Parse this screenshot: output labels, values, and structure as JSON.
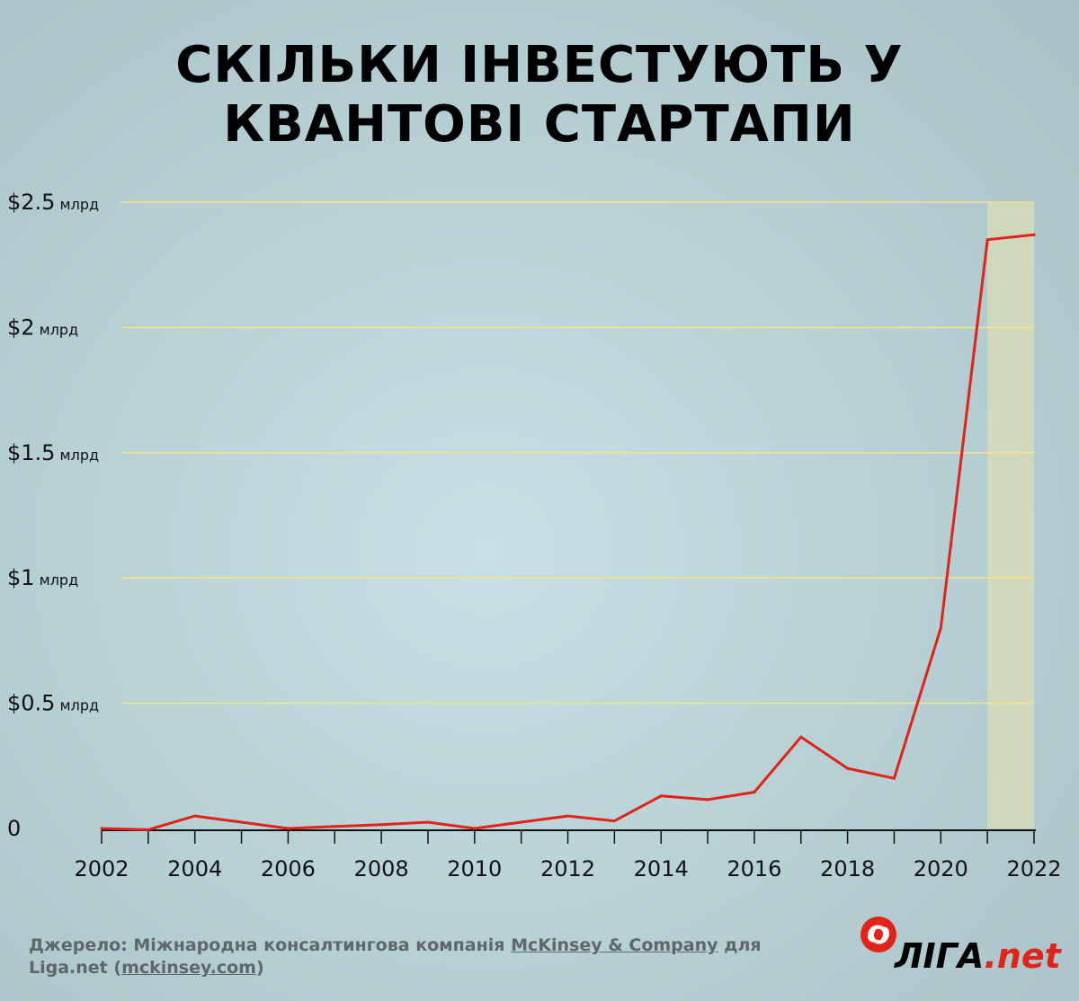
{
  "title": {
    "line1": "СКІЛЬКИ ІНВЕСТУЮТЬ У",
    "line2": "КВАНТОВІ СТАРТАПИ"
  },
  "chart_data": {
    "type": "line",
    "title": "СКІЛЬКИ ІНВЕСТУЮТЬ У КВАНТОВІ СТАРТАПИ",
    "xlabel": "",
    "ylabel": "",
    "x": [
      2002,
      2003,
      2004,
      2005,
      2006,
      2007,
      2008,
      2009,
      2010,
      2011,
      2012,
      2013,
      2014,
      2015,
      2016,
      2017,
      2018,
      2019,
      2020,
      2021,
      2022
    ],
    "series": [
      {
        "name": "",
        "values": [
          0.0,
          -0.005,
          0.05,
          0.025,
          0.0,
          0.008,
          0.015,
          0.025,
          0.0,
          0.025,
          0.05,
          0.03,
          0.13,
          0.115,
          0.145,
          0.365,
          0.24,
          0.2,
          0.8,
          2.35,
          2.37
        ]
      }
    ],
    "xlim": [
      2002,
      2022
    ],
    "ylim": [
      0,
      2.5
    ],
    "x_ticks": [
      "2002",
      "2004",
      "2006",
      "2008",
      "2010",
      "2012",
      "2014",
      "2016",
      "2018",
      "2020",
      "2022"
    ],
    "y_ticks": [
      {
        "value": 0,
        "main": "0",
        "unit": ""
      },
      {
        "value": 0.5,
        "main": "$0.5",
        "unit": "млрд"
      },
      {
        "value": 1,
        "main": "$1",
        "unit": "млрд"
      },
      {
        "value": 1.5,
        "main": "$1.5",
        "unit": "млрд"
      },
      {
        "value": 2,
        "main": "$2",
        "unit": "млрд"
      },
      {
        "value": 2.5,
        "main": "$2.5",
        "unit": "млрд"
      }
    ],
    "highlight_range": [
      2021,
      2022
    ],
    "grid": true,
    "legend": "none",
    "colors": {
      "line": "#e2231a",
      "grid": "#f1e38a",
      "axis": "#111111",
      "highlight": "#d6dbb8"
    }
  },
  "source": {
    "prefix": "Джерело: Міжнародна консалтингова компанія ",
    "company": "McKinsey & Company",
    "middle": " для Liga.net (",
    "site": "mckinsey.com",
    "suffix": ")"
  },
  "logo": {
    "icon": "liga-logo-icon",
    "text_main": "ЛІГА",
    "text_accent": ".net"
  }
}
